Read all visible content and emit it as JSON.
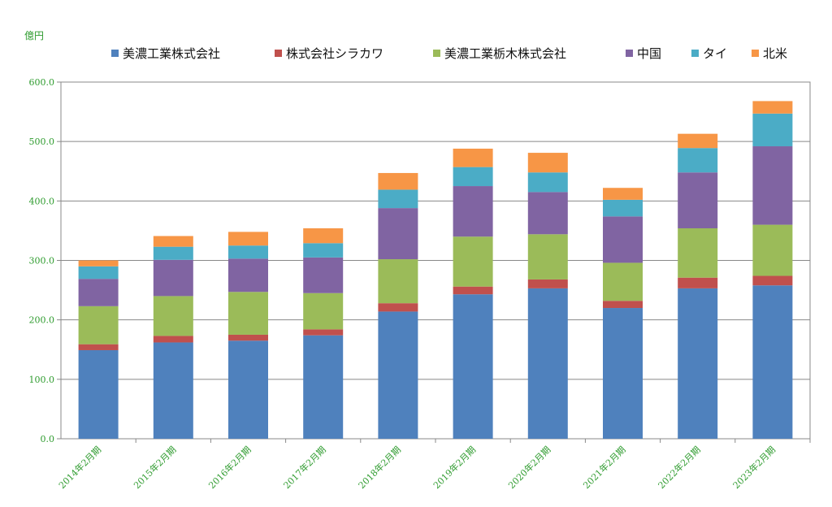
{
  "chart_data": {
    "type": "bar",
    "stacked": true,
    "unit_label": "億円",
    "categories": [
      "2014年2月期",
      "2015年2月期",
      "2016年2月期",
      "2017年2月期",
      "2018年2月期",
      "2019年2月期",
      "2020年2月期",
      "2021年2月期",
      "2022年2月期",
      "2023年2月期"
    ],
    "ylim": [
      0,
      600
    ],
    "yticks": [
      "0.0",
      "100.0",
      "200.0",
      "300.0",
      "400.0",
      "500.0",
      "600.0"
    ],
    "grid": true,
    "legend_position": "top",
    "series": [
      {
        "name": "美濃工業株式会社",
        "color": "#4f81bd",
        "values": [
          149,
          162,
          165,
          174,
          214,
          243,
          253,
          220,
          253,
          258
        ]
      },
      {
        "name": "株式会社シラカワ",
        "color": "#c0504d",
        "values": [
          10,
          11,
          10,
          10,
          14,
          13,
          15,
          12,
          18,
          16
        ]
      },
      {
        "name": "美濃工業栃木株式会社",
        "color": "#9bbb59",
        "values": [
          64,
          67,
          72,
          61,
          74,
          84,
          76,
          64,
          83,
          86
        ]
      },
      {
        "name": "中国",
        "color": "#8064a2",
        "values": [
          46,
          61,
          56,
          60,
          86,
          85,
          71,
          78,
          94,
          132
        ]
      },
      {
        "name": "タイ",
        "color": "#4bacc6",
        "values": [
          21,
          22,
          22,
          24,
          31,
          32,
          33,
          28,
          41,
          55
        ]
      },
      {
        "name": "北米",
        "color": "#f79646",
        "values": [
          10,
          18,
          23,
          25,
          28,
          31,
          33,
          20,
          24,
          21
        ]
      }
    ]
  }
}
